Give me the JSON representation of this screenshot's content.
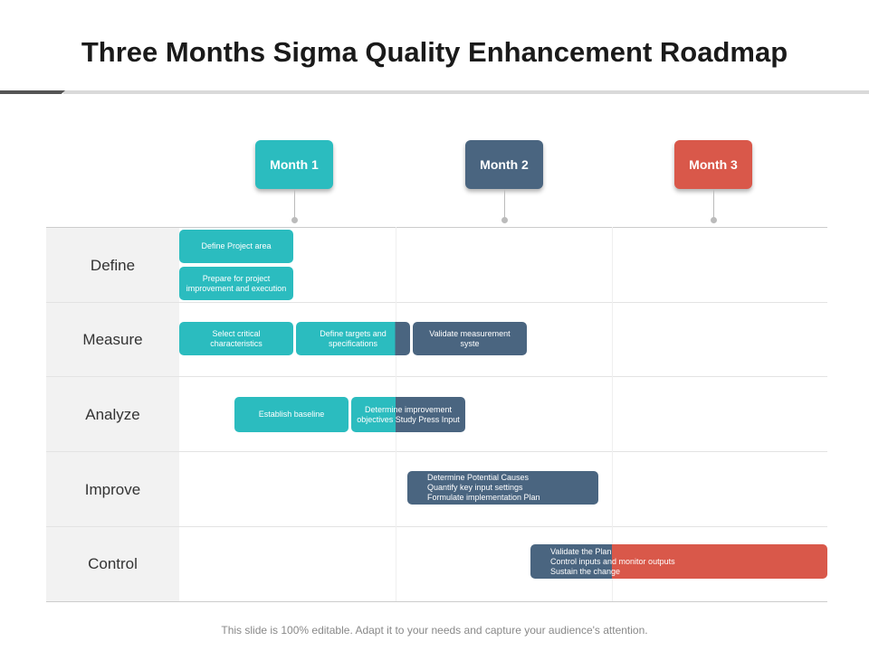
{
  "title": "Three Months Sigma Quality Enhancement Roadmap",
  "colors": {
    "teal": "#2bbcbf",
    "slate": "#4a6580",
    "red": "#d9584a"
  },
  "months": [
    "Month 1",
    "Month 2",
    "Month 3"
  ],
  "phases": [
    "Define",
    "Measure",
    "Analyze",
    "Improve",
    "Control"
  ],
  "tasks": {
    "define_project_area": "Define Project area",
    "prepare": "Prepare  for project improvement and execution",
    "select_critical": "Select critical characteristics",
    "define_targets": "Define targets and specifications",
    "validate_measurement": "Validate measurement syste",
    "establish_baseline": "Establish baseline",
    "determine_improvement": "Determine improvement objectives Study Press Input",
    "improve": [
      "Determine Potential Causes",
      "Quantify key input settings",
      "Formulate implementation Plan"
    ],
    "control": [
      "Validate the Plan",
      "Control inputs and monitor outputs",
      "Sustain the change"
    ]
  },
  "footer": "This slide is 100% editable. Adapt it to your needs and capture your audience's attention."
}
